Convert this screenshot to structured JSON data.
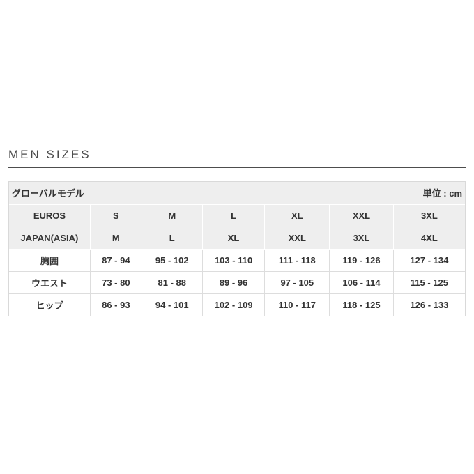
{
  "page": {
    "title": "MEN SIZES"
  },
  "size_chart": {
    "model_label": "グローバルモデル",
    "unit_label": "単位 : cm",
    "size_rows": [
      {
        "label": "EUROS",
        "values": [
          "S",
          "M",
          "L",
          "XL",
          "XXL",
          "3XL"
        ]
      },
      {
        "label": "JAPAN(ASIA)",
        "values": [
          "M",
          "L",
          "XL",
          "XXL",
          "3XL",
          "4XL"
        ]
      }
    ],
    "measurement_rows": [
      {
        "label": "胸囲",
        "values": [
          "87 - 94",
          "95 - 102",
          "103 - 110",
          "111 - 118",
          "119 - 126",
          "127 - 134"
        ]
      },
      {
        "label": "ウエスト",
        "values": [
          "73 - 80",
          "81 - 88",
          "89 - 96",
          "97 - 105",
          "106 - 114",
          "115 - 125"
        ]
      },
      {
        "label": "ヒップ",
        "values": [
          "86 - 93",
          "94 - 101",
          "102 - 109",
          "110 - 117",
          "118 - 125",
          "126 - 133"
        ]
      }
    ]
  },
  "colors": {
    "page_bg": "#ffffff",
    "header_bg": "#eeeeee",
    "table_border": "#d9d9d9",
    "cell_border": "#dddddd",
    "text": "#333333",
    "title_text": "#4a4a4a",
    "title_rule": "#4d4d4d"
  }
}
